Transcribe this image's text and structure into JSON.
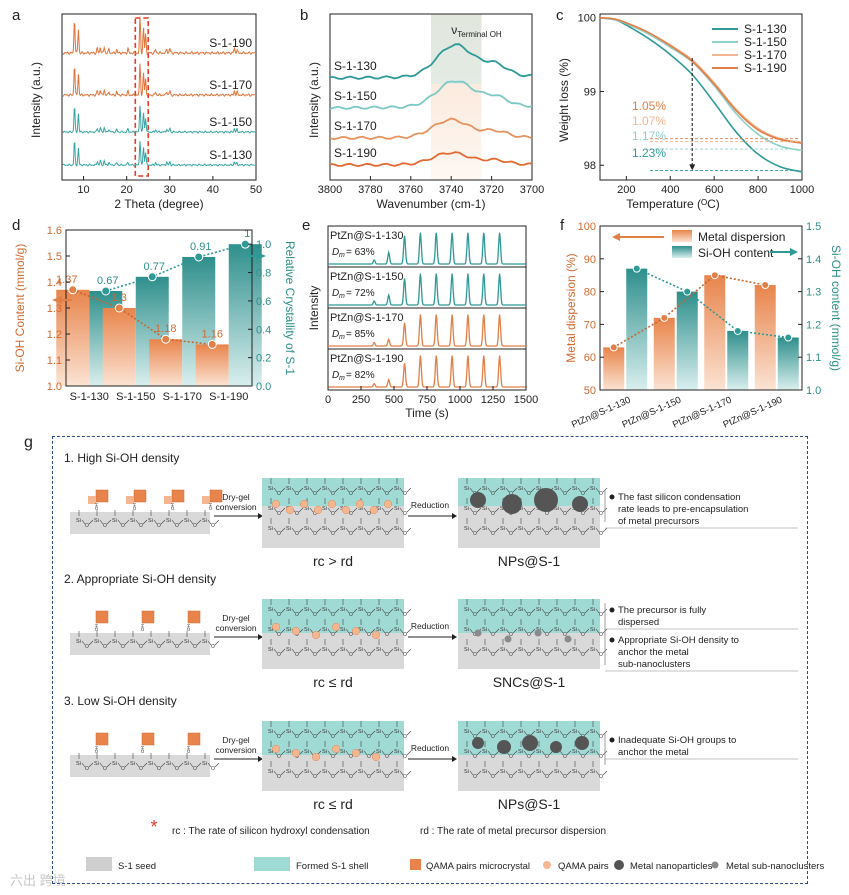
{
  "panel_letters": [
    "a",
    "b",
    "c",
    "d",
    "e",
    "f",
    "g"
  ],
  "chart_data": [
    {
      "id": "a",
      "type": "line",
      "title": "",
      "xlabel": "2 Theta (degree)",
      "ylabel": "Intensity (a.u.)",
      "xlim": [
        5,
        50
      ],
      "xticks": [
        10,
        20,
        30,
        40,
        50
      ],
      "series": [
        {
          "name": "S-1-190",
          "color": "#e0733a"
        },
        {
          "name": "S-1-170",
          "color": "#e0733a"
        },
        {
          "name": "S-1-150",
          "color": "#3aa6a2"
        },
        {
          "name": "S-1-130",
          "color": "#3aa6a2"
        }
      ],
      "main_peaks_2theta": [
        7.9,
        8.8,
        23.1,
        23.9,
        24.4,
        45.0
      ],
      "highlight_range": [
        22,
        25
      ]
    },
    {
      "id": "b",
      "type": "line",
      "xlabel": "Wavenumber (cm-1)",
      "ylabel": "Intensity (a.u.)",
      "xlim": [
        3800,
        3700
      ],
      "xticks": [
        3800,
        3780,
        3760,
        3740,
        3720,
        3700
      ],
      "band_label": "νTerminal OH",
      "band_range": [
        3750,
        3725
      ],
      "series": [
        {
          "name": "S-1-130",
          "color": "#2e9a98",
          "peak": 3738
        },
        {
          "name": "S-1-150",
          "color": "#7cc8c4",
          "peak": 3738
        },
        {
          "name": "S-1-170",
          "color": "#e6935f",
          "peak": 3740
        },
        {
          "name": "S-1-190",
          "color": "#e06a32",
          "peak": 3740
        }
      ]
    },
    {
      "id": "c",
      "type": "line",
      "xlabel": "Temperature (°C)",
      "ylabel": "Weight loss (%)",
      "xlim": [
        80,
        1000
      ],
      "ylim": [
        97.8,
        100.05
      ],
      "xticks": [
        200,
        400,
        600,
        800,
        1000
      ],
      "yticks": [
        98,
        99,
        100
      ],
      "x": [
        80,
        150,
        200,
        300,
        400,
        500,
        600,
        700,
        800,
        900,
        1000
      ],
      "series": [
        {
          "name": "S-1-130",
          "color": "#2e9a98",
          "values": [
            100,
            99.97,
            99.9,
            99.72,
            99.5,
            99.23,
            98.85,
            98.45,
            98.15,
            97.98,
            97.91
          ]
        },
        {
          "name": "S-1-150",
          "color": "#8fd0cc",
          "values": [
            100,
            99.97,
            99.92,
            99.78,
            99.6,
            99.4,
            99.08,
            98.7,
            98.42,
            98.26,
            98.2
          ]
        },
        {
          "name": "S-1-170",
          "color": "#f3b690",
          "values": [
            100,
            99.98,
            99.93,
            99.8,
            99.63,
            99.43,
            99.12,
            98.76,
            98.5,
            98.36,
            98.31
          ]
        },
        {
          "name": "S-1-190",
          "color": "#e07f47",
          "values": [
            100,
            99.98,
            99.93,
            99.8,
            99.62,
            99.41,
            99.1,
            98.74,
            98.48,
            98.35,
            98.3
          ]
        }
      ],
      "annotations": [
        {
          "text": "1.05%",
          "color": "#e07f47",
          "y": 98.36
        },
        {
          "text": "1.07%",
          "color": "#f3b690",
          "y": 98.32
        },
        {
          "text": "1.17%",
          "color": "#8fd0cc",
          "y": 98.22
        },
        {
          "text": "1.23%",
          "color": "#2e9a98",
          "y": 97.93
        }
      ],
      "arrow_x": 500
    },
    {
      "id": "d",
      "type": "bar",
      "categories": [
        "S-1-130",
        "S-1-150",
        "S-1-170",
        "S-1-190"
      ],
      "series": [
        {
          "name": "Si-OH Content",
          "axis": "left",
          "values": [
            1.37,
            1.3,
            1.18,
            1.16
          ],
          "labels": [
            "1.37",
            "1.3",
            "1.18",
            "1.16"
          ],
          "color": "#e07f47"
        },
        {
          "name": "Relative Crystallity",
          "axis": "right",
          "values": [
            0.67,
            0.77,
            0.91,
            1.0
          ],
          "labels": [
            "0.67",
            "0.77",
            "0.91",
            "1"
          ],
          "color": "#2e9a98"
        }
      ],
      "ylabel_left": "Si-OH Content (mmol/g)",
      "ylim_left": [
        1.0,
        1.6
      ],
      "yticks_left": [
        1.0,
        1.1,
        1.2,
        1.3,
        1.4,
        1.5,
        1.6
      ],
      "ylabel_right": "Relative Crystallity of S-1",
      "ylim_right": [
        0.0,
        1.1
      ],
      "yticks_right": [
        0.0,
        0.2,
        0.4,
        0.6,
        0.8,
        1.0
      ]
    },
    {
      "id": "e",
      "type": "line",
      "xlabel": "Time (s)",
      "ylabel": "Intensity",
      "xlim": [
        0,
        1500
      ],
      "xticks": [
        0,
        250,
        500,
        750,
        1000,
        1250,
        1500
      ],
      "pulse_times": [
        350,
        460,
        580,
        700,
        820,
        940,
        1060,
        1180,
        1300
      ],
      "traces": [
        {
          "label": "PtZn@S-1-130",
          "dm": "Dm = 63%",
          "color": "#2e9a98",
          "heights": [
            0.12,
            0.35,
            0.85,
            0.95,
            0.95,
            0.95,
            0.95,
            0.95,
            0.95
          ]
        },
        {
          "label": "PtZn@S-1-150",
          "dm": "Dm = 72%",
          "color": "#2e9a98",
          "heights": [
            0.12,
            0.3,
            0.8,
            0.95,
            0.95,
            0.95,
            0.95,
            0.95,
            0.95
          ]
        },
        {
          "label": "PtZn@S-1-170",
          "dm": "Dm = 85%",
          "color": "#e07f47",
          "heights": [
            0.1,
            0.2,
            0.7,
            0.95,
            0.95,
            0.95,
            0.95,
            0.95,
            0.95
          ]
        },
        {
          "label": "PtZn@S-1-190",
          "dm": "Dm = 82%",
          "color": "#e07f47",
          "heights": [
            0.1,
            0.22,
            0.72,
            0.95,
            0.95,
            0.95,
            0.95,
            0.95,
            0.95
          ]
        }
      ]
    },
    {
      "id": "f",
      "type": "bar",
      "categories": [
        "PtZn@S-1-130",
        "PtZn@S-1-150",
        "PtZn@S-1-170",
        "PtZn@S-1-190"
      ],
      "series": [
        {
          "name": "Metal dispersion",
          "axis": "left",
          "values": [
            63,
            72,
            85,
            82
          ],
          "color": "#e07f47"
        },
        {
          "name": "Si-OH content",
          "axis": "right",
          "values": [
            1.37,
            1.3,
            1.18,
            1.16
          ],
          "color": "#2e9a98"
        }
      ],
      "ylabel_left": "Metal dispersion (%)",
      "ylim_left": [
        50,
        100
      ],
      "yticks_left": [
        50,
        60,
        70,
        80,
        90,
        100
      ],
      "ylabel_right": "Si-OH content (mmol/g)",
      "ylim_right": [
        1.0,
        1.5
      ],
      "yticks_right": [
        1.0,
        1.1,
        1.2,
        1.3,
        1.4,
        1.5
      ],
      "legend_position": "top-right"
    }
  ],
  "scheme": {
    "rows": [
      {
        "title": "1. High Si-OH density",
        "step1": [
          "Dry-gel",
          "conversion"
        ],
        "step2": "Reduction",
        "rate": "rc > rd",
        "product": "NPs@S-1",
        "notes": [
          "The fast silicon condensation rate leads to pre-encapsulation of metal precursors"
        ]
      },
      {
        "title": "2. Appropriate Si-OH density",
        "step1": [
          "Dry-gel",
          "conversion"
        ],
        "step2": "Reduction",
        "rate": "rc ≤ rd",
        "product": "SNCs@S-1",
        "notes": [
          "The precursor is fully dispersed",
          "Appropriate Si-OH density to anchor the metal sub-nanoclusters"
        ]
      },
      {
        "title": "3. Low Si-OH density",
        "step1": [
          "Dry-gel",
          "conversion"
        ],
        "step2": "Reduction",
        "rate": "rc ≤ rd",
        "product": "NPs@S-1",
        "notes": [
          "Inadequate Si-OH groups to anchor the metal"
        ]
      }
    ],
    "footnote_rc": "rc : The rate of silicon hydroxyl condensation",
    "footnote_rd": "rd : The rate of metal precursor dispersion",
    "legend": [
      "S-1 seed",
      "Formed S-1 shell",
      "QAMA pairs microcrystal",
      "QAMA pairs",
      "Metal  nanoparticles",
      "Metal sub-nanoclusters"
    ]
  },
  "watermark": "六出 跨境"
}
